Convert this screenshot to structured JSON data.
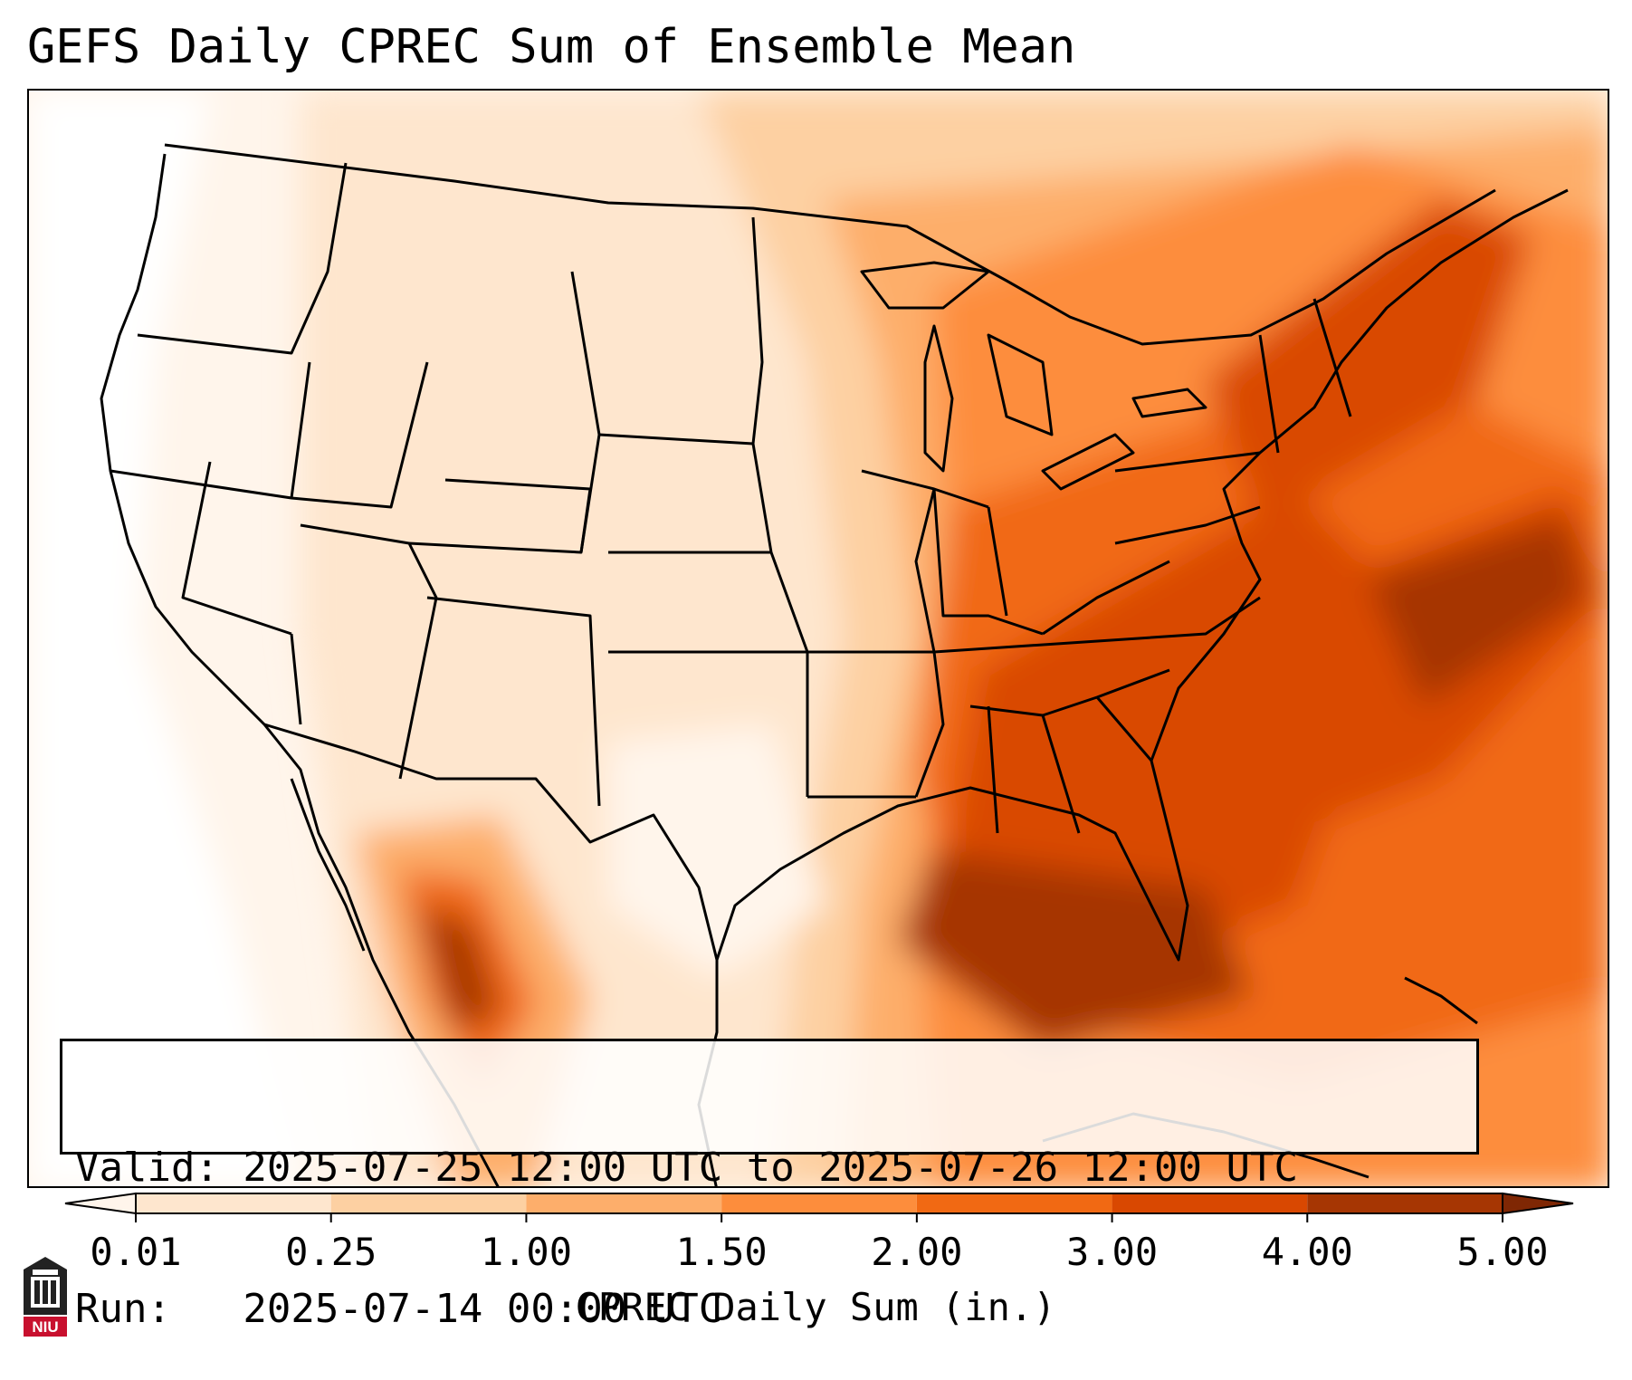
{
  "title": "GEFS Daily CPREC Sum of Ensemble Mean",
  "info": {
    "valid_line": "Valid: 2025-07-25 12:00 UTC to 2025-07-26 12:00 UTC",
    "run_line": "Run:   2025-07-14 00:00 UTC"
  },
  "colorbar": {
    "label": "CPREC Daily Sum (in.)",
    "ticks": [
      "0.01",
      "0.25",
      "1.00",
      "1.50",
      "2.00",
      "3.00",
      "4.00",
      "5.00"
    ],
    "colors": [
      "#fff5eb",
      "#fee6ce",
      "#fdd0a2",
      "#fdae6b",
      "#fd8d3c",
      "#f16913",
      "#d94801",
      "#a63603",
      "#7f2704"
    ]
  },
  "logo": {
    "text": "NIU"
  },
  "colors": {
    "background": "#ffffff",
    "outline": "#000000"
  }
}
